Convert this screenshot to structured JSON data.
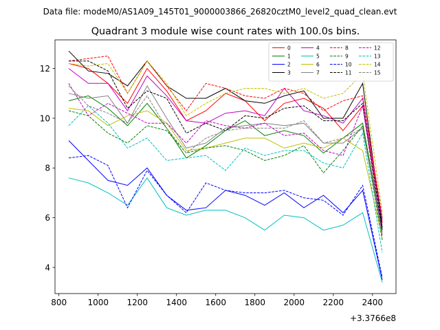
{
  "chart_data": {
    "type": "line",
    "suptitle": "Data file: modeM0/AS1A09_145T01_9000003866_26820cztM0_level2_quad_clean.evt",
    "title": "Quadrant 3 module wise count rates with 100.0s bins.",
    "xlabel": "",
    "ylabel": "",
    "x_offset_label": "+3.3766e8",
    "xlim": [
      780,
      2520
    ],
    "ylim": [
      2.95,
      13.15
    ],
    "x_ticks": [
      800,
      1000,
      1200,
      1400,
      1600,
      1800,
      2000,
      2200,
      2400
    ],
    "y_ticks": [
      4,
      6,
      8,
      10,
      12
    ],
    "x": [
      850,
      950,
      1050,
      1150,
      1250,
      1350,
      1450,
      1550,
      1650,
      1750,
      1850,
      1950,
      2050,
      2150,
      2250,
      2350,
      2450
    ],
    "legend_position": "upper-right",
    "series": [
      {
        "name": "0",
        "color": "#ff0000",
        "dash": "solid",
        "values": [
          12.2,
          12.0,
          11.4,
          10.6,
          12.0,
          11.1,
          9.9,
          10.3,
          11.0,
          10.7,
          9.9,
          10.6,
          10.8,
          10.4,
          9.5,
          10.5,
          5.8
        ]
      },
      {
        "name": "1",
        "color": "#008000",
        "dash": "solid",
        "values": [
          10.7,
          10.9,
          10.4,
          9.7,
          10.6,
          9.6,
          8.4,
          8.9,
          9.5,
          9.9,
          9.3,
          9.5,
          9.3,
          8.6,
          9.2,
          9.8,
          5.5
        ]
      },
      {
        "name": "2",
        "color": "#0000ff",
        "dash": "solid",
        "values": [
          9.1,
          8.3,
          7.5,
          7.3,
          8.0,
          6.9,
          6.3,
          6.4,
          7.1,
          6.9,
          6.5,
          7.0,
          6.4,
          6.9,
          6.2,
          7.1,
          3.5
        ]
      },
      {
        "name": "3",
        "color": "#000000",
        "dash": "solid",
        "values": [
          12.7,
          11.9,
          11.8,
          11.3,
          12.3,
          11.3,
          10.8,
          10.8,
          11.2,
          10.7,
          10.6,
          10.9,
          11.1,
          10.0,
          10.0,
          11.4,
          5.6
        ]
      },
      {
        "name": "4",
        "color": "#c000c0",
        "dash": "solid",
        "values": [
          12.0,
          11.4,
          11.4,
          10.3,
          11.7,
          10.9,
          9.9,
          9.8,
          10.2,
          10.3,
          10.1,
          11.2,
          10.3,
          10.1,
          9.8,
          10.8,
          5.9
        ]
      },
      {
        "name": "5",
        "color": "#00bfbf",
        "dash": "solid",
        "values": [
          7.6,
          7.4,
          7.0,
          6.5,
          7.6,
          6.4,
          6.1,
          6.3,
          6.3,
          6.0,
          5.5,
          6.1,
          6.0,
          5.5,
          5.7,
          6.2,
          3.4
        ]
      },
      {
        "name": "6",
        "color": "#bfbf00",
        "dash": "solid",
        "values": [
          10.4,
          10.3,
          9.7,
          10.1,
          10.3,
          9.8,
          8.7,
          8.8,
          9.0,
          9.2,
          9.2,
          8.8,
          9.0,
          8.8,
          9.2,
          8.7,
          5.2
        ]
      },
      {
        "name": "7",
        "color": "#808080",
        "dash": "solid",
        "values": [
          11.0,
          10.8,
          10.9,
          9.8,
          11.3,
          10.0,
          8.8,
          9.0,
          9.6,
          9.7,
          9.8,
          9.7,
          9.8,
          9.0,
          9.0,
          9.6,
          5.4
        ]
      },
      {
        "name": "8",
        "color": "#ff0000",
        "dash": "dashed",
        "values": [
          12.3,
          12.4,
          12.5,
          11.0,
          12.3,
          11.3,
          10.3,
          11.4,
          11.2,
          10.9,
          10.8,
          11.2,
          11.0,
          10.3,
          10.7,
          10.9,
          6.0
        ]
      },
      {
        "name": "9",
        "color": "#008000",
        "dash": "dashed",
        "values": [
          10.3,
          10.1,
          9.4,
          9.0,
          9.7,
          9.5,
          8.6,
          8.8,
          8.9,
          8.7,
          8.3,
          8.5,
          8.9,
          7.8,
          8.7,
          9.7,
          5.1
        ]
      },
      {
        "name": "10",
        "color": "#0000ff",
        "dash": "dashed",
        "values": [
          8.4,
          8.5,
          8.1,
          6.4,
          7.9,
          6.9,
          6.2,
          7.4,
          7.1,
          7.0,
          7.0,
          7.1,
          6.8,
          6.7,
          6.1,
          7.3,
          3.6
        ]
      },
      {
        "name": "11",
        "color": "#000000",
        "dash": "dashed",
        "values": [
          12.3,
          12.3,
          11.9,
          10.4,
          11.1,
          10.8,
          9.4,
          9.8,
          9.5,
          10.1,
          10.0,
          10.4,
          10.5,
          9.9,
          9.9,
          10.6,
          5.5
        ]
      },
      {
        "name": "12",
        "color": "#c000c0",
        "dash": "dashed",
        "values": [
          11.4,
          10.1,
          10.6,
          10.2,
          9.8,
          9.8,
          9.0,
          9.9,
          9.7,
          9.6,
          9.8,
          9.3,
          9.4,
          8.7,
          8.5,
          10.5,
          5.3
        ]
      },
      {
        "name": "13",
        "color": "#00bfbf",
        "dash": "dashed",
        "values": [
          9.7,
          10.5,
          9.8,
          8.8,
          9.2,
          8.3,
          8.4,
          8.5,
          7.9,
          8.8,
          8.5,
          8.7,
          8.7,
          8.2,
          8.0,
          9.4,
          4.6
        ]
      },
      {
        "name": "14",
        "color": "#bfbf00",
        "dash": "dashed",
        "values": [
          12.2,
          12.1,
          12.2,
          11.0,
          12.3,
          11.4,
          10.1,
          10.6,
          11.0,
          11.2,
          11.2,
          11.0,
          11.2,
          10.8,
          11.0,
          11.8,
          6.2
        ]
      },
      {
        "name": "15",
        "color": "#808080",
        "dash": "dashed",
        "values": [
          11.3,
          10.5,
          10.2,
          9.8,
          10.9,
          9.6,
          8.6,
          9.2,
          9.5,
          9.6,
          9.6,
          9.6,
          9.9,
          9.0,
          9.2,
          9.6,
          5.3
        ]
      }
    ]
  }
}
